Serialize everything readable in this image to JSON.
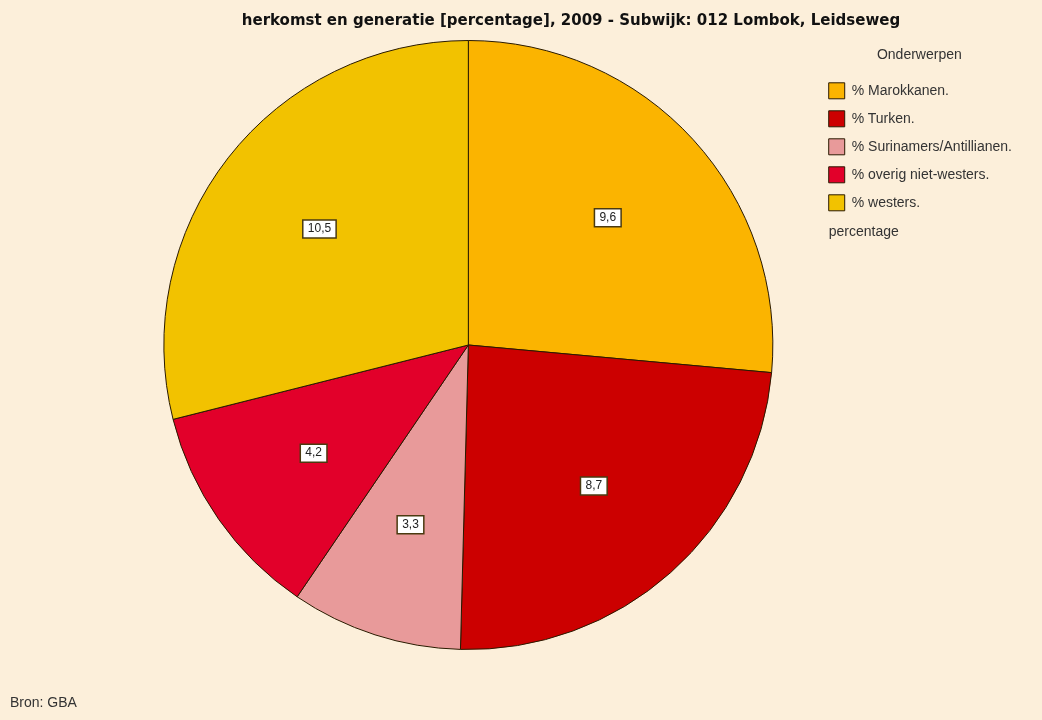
{
  "chart_data": {
    "type": "pie",
    "title": "herkomst en generatie [percentage], 2009 - Subwijk: 012 Lombok, Leidseweg",
    "legend_title": "Onderwerpen",
    "legend": "top right",
    "categories": [
      "% Marokkanen.",
      "% Turken.",
      "% Surinamers/Antillianen.",
      "% overig niet-westers.",
      "% westers."
    ],
    "values": [
      9.6,
      8.7,
      3.3,
      4.2,
      10.5
    ],
    "value_labels": [
      "9,6",
      "8,7",
      "3,3",
      "4,2",
      "10,5"
    ],
    "colors": [
      "#fbb400",
      "#cc0000",
      "#e89a9a",
      "#e2002a",
      "#f2c200"
    ],
    "annotations": [
      "percentage",
      "Bron: GBA"
    ]
  }
}
